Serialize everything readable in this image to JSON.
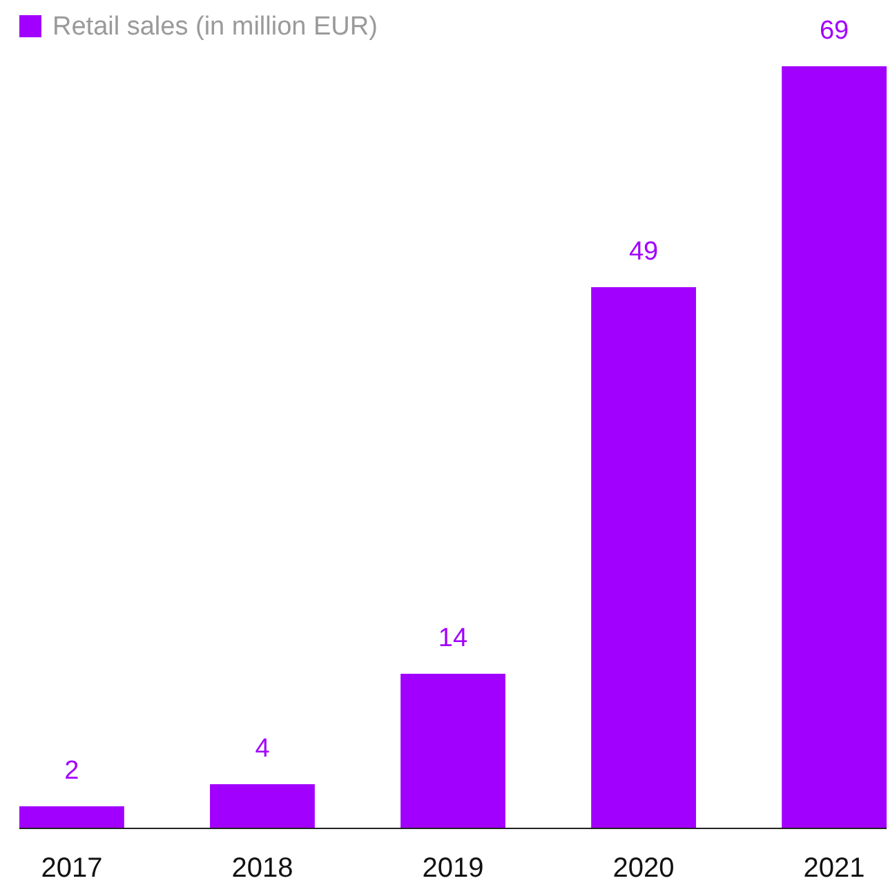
{
  "chart_data": {
    "type": "bar",
    "categories": [
      "2017",
      "2018",
      "2019",
      "2020",
      "2021"
    ],
    "series": [
      {
        "name": "Retail sales (in million EUR)",
        "color": "#a100ff",
        "values": [
          2,
          4,
          14,
          49,
          69
        ]
      }
    ],
    "data_labels": true,
    "legend": "top left",
    "grid": false
  }
}
